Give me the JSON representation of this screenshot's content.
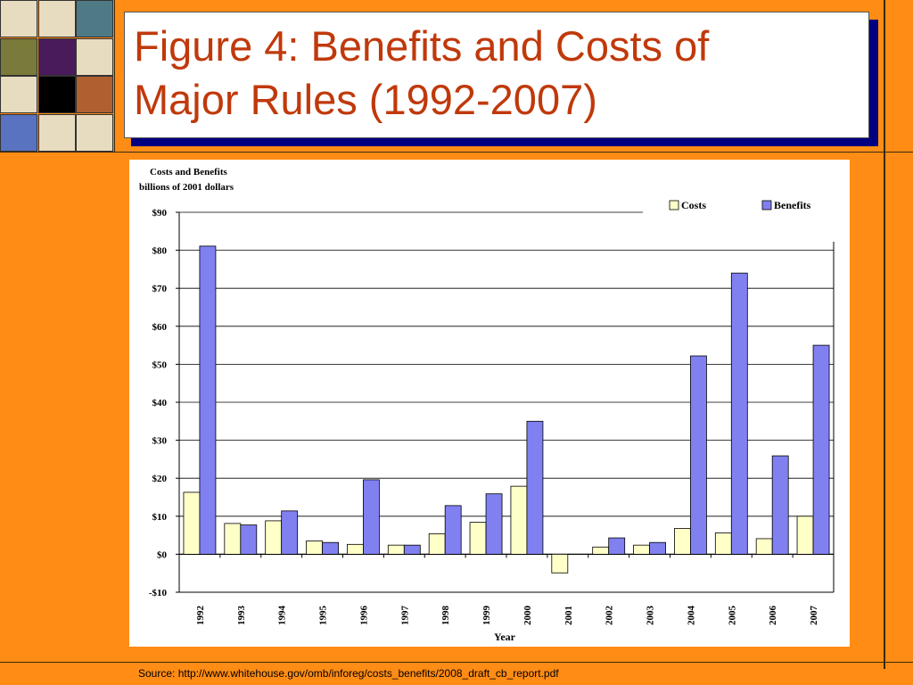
{
  "slide": {
    "title": "Figure 4: Benefits and Costs of\nMajor Rules (1992-2007)",
    "source": "Source: http://www.whitehouse.gov/omb/inforeg/costs_benefits/2008_draft_cb_report.pdf",
    "colors": {
      "background": "#FF8C14",
      "title_text": "#C0390B",
      "title_shadow": "#000080",
      "tiles": [
        "#E8DCC0",
        "#E8DCC0",
        "#4E7A86",
        "#7A7A3A",
        "#4A1B5A",
        "#E8DCC0",
        "#E8DCC0",
        "#000000",
        "#B06030",
        "#5A73C0",
        "#E8DCC0",
        "#E8DCC0"
      ]
    }
  },
  "chart_data": {
    "type": "bar",
    "title": "Costs and Benefits",
    "subtitle": "billions of 2001 dollars",
    "xlabel": "Year",
    "ylabel": "",
    "ylim": [
      -10,
      90
    ],
    "yticks": [
      -10,
      0,
      10,
      20,
      30,
      40,
      50,
      60,
      70,
      80,
      90
    ],
    "ytick_labels": [
      "-$10",
      "$0",
      "$10",
      "$20",
      "$30",
      "$40",
      "$50",
      "$60",
      "$70",
      "$80",
      "$90"
    ],
    "grid": true,
    "legend_position": "top-right",
    "categories": [
      "1992",
      "1993",
      "1994",
      "1995",
      "1996",
      "1997",
      "1998",
      "1999",
      "2000",
      "2001",
      "2002",
      "2003",
      "2004",
      "2005",
      "2006",
      "2007"
    ],
    "series": [
      {
        "name": "Costs",
        "color": "#FFFFC8",
        "values": [
          16.3,
          8.1,
          8.8,
          3.5,
          2.6,
          2.4,
          5.4,
          8.4,
          17.9,
          -4.9,
          1.9,
          2.4,
          6.8,
          5.6,
          4.1,
          10.0
        ]
      },
      {
        "name": "Benefits",
        "color": "#8080F0",
        "values": [
          81.1,
          7.7,
          11.4,
          3.1,
          19.6,
          2.4,
          12.8,
          15.9,
          35.0,
          0.0,
          4.3,
          3.1,
          52.2,
          74.0,
          25.9,
          55.0
        ]
      }
    ]
  }
}
